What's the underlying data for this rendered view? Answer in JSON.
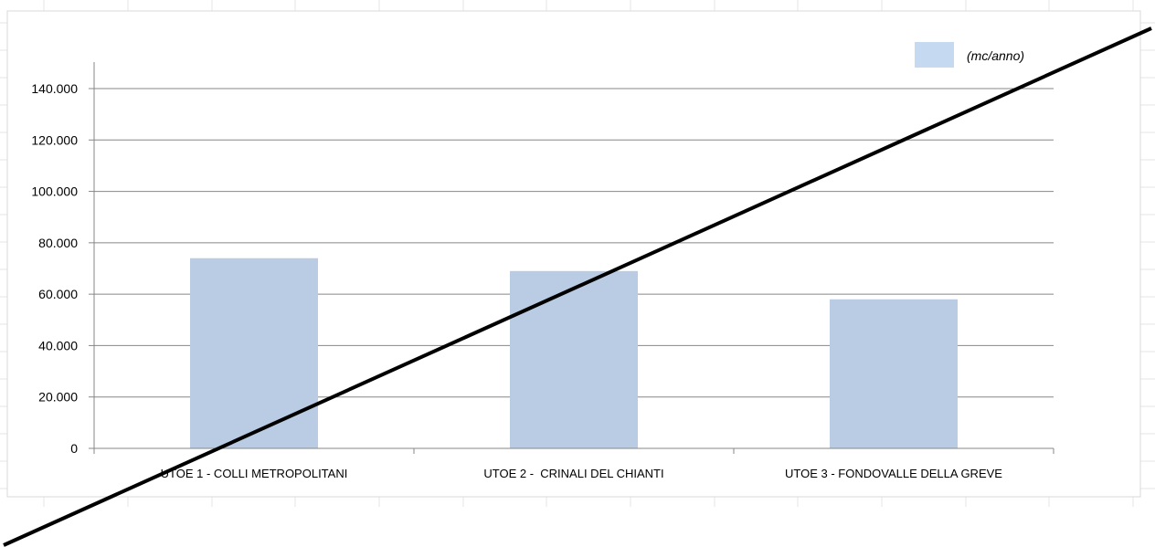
{
  "chart_data": {
    "type": "bar",
    "categories": [
      "UTOE 1 - COLLI METROPOLITANI",
      "UTOE 2 -  CRINALI DEL CHIANTI",
      "UTOE 3 - FONDOVALLE DELLA GREVE"
    ],
    "series": [
      {
        "name": "(mc/anno)",
        "values": [
          74000,
          69000,
          58000
        ]
      }
    ],
    "y_ticks": [
      "0",
      "20.000",
      "40.000",
      "60.000",
      "80.000",
      "100.000",
      "120.000",
      "140.000"
    ],
    "ylim": [
      0,
      140000
    ],
    "grid": true,
    "legend_position": "top-right",
    "colors": {
      "bar": "#b9cce4",
      "legend_swatch": "#c5d9f1",
      "gridline": "#878787",
      "axis": "#878787",
      "background_grid": "#e6e6e6",
      "overlay_line": "#000000"
    }
  }
}
